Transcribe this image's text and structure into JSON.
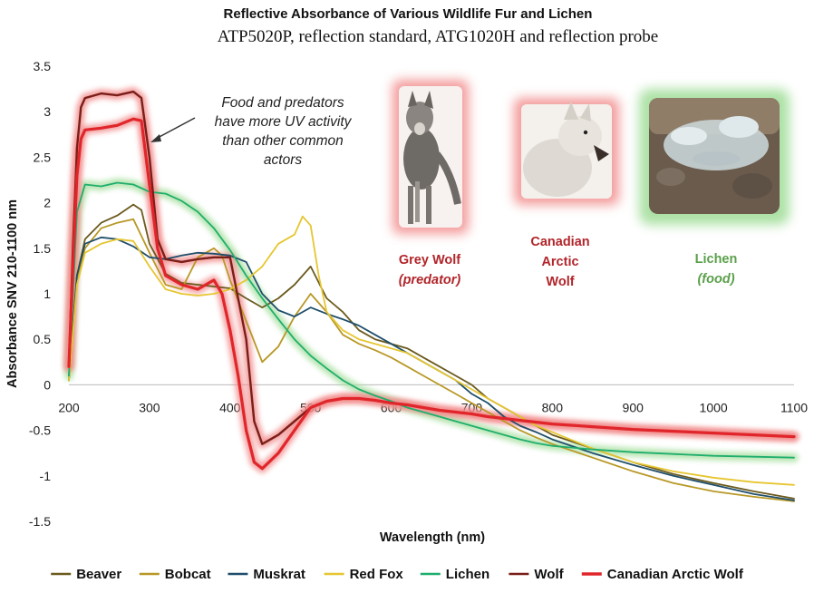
{
  "colors": {
    "Beaver": "#6b5a1e",
    "Bobcat": "#b89826",
    "Muskrat": "#1f4e6b",
    "Red Fox": "#e6c630",
    "Lichen": "#1fae6e",
    "Wolf": "#7a1e18",
    "Canadian Arctic Wolf": "#e0262b",
    "highlight_red": "#f28a8a",
    "highlight_green": "#a8e0a0"
  },
  "chart_data": {
    "type": "line",
    "title": "Reflective Absorbance of Various Wildlife Fur and Lichen",
    "subtitle": "ATP5020P, reflection standard, ATG1020H and reflection probe",
    "xlabel": "Wavelength (nm)",
    "ylabel": "Absorbance SNV 210-1100 nm",
    "xlim": [
      200,
      1100
    ],
    "ylim": [
      -1.5,
      3.5
    ],
    "xticks": [
      200,
      300,
      400,
      500,
      600,
      700,
      800,
      900,
      1000,
      1100
    ],
    "yticks": [
      3.5,
      3,
      2.5,
      2,
      1.5,
      1,
      0.5,
      0,
      -0.5,
      -1,
      -1.5
    ],
    "xtick_labels": [
      "200",
      "300",
      "400",
      "500",
      "600",
      "700",
      "800",
      "900",
      "1000",
      "1100"
    ],
    "ytick_labels": [
      "3.5",
      "3",
      "2.5",
      "2",
      "1.5",
      "1",
      "0.5",
      "0",
      "-0.5",
      "-1",
      "-1.5"
    ],
    "legend_position": "bottom",
    "series": [
      {
        "name": "Beaver",
        "x": [
          200,
          210,
          220,
          240,
          260,
          280,
          290,
          300,
          320,
          340,
          360,
          380,
          400,
          420,
          440,
          460,
          480,
          500,
          520,
          540,
          560,
          580,
          600,
          620,
          640,
          660,
          680,
          700,
          720,
          740,
          760,
          780,
          800,
          850,
          900,
          950,
          1000,
          1050,
          1100
        ],
        "y": [
          0.1,
          1.2,
          1.6,
          1.78,
          1.86,
          1.98,
          1.92,
          1.55,
          1.22,
          1.12,
          1.1,
          1.08,
          1.06,
          0.95,
          0.85,
          0.95,
          1.1,
          1.3,
          0.95,
          0.8,
          0.6,
          0.5,
          0.45,
          0.4,
          0.3,
          0.2,
          0.1,
          0.0,
          -0.15,
          -0.25,
          -0.35,
          -0.45,
          -0.55,
          -0.7,
          -0.85,
          -0.98,
          -1.08,
          -1.17,
          -1.25
        ]
      },
      {
        "name": "Bobcat",
        "x": [
          200,
          210,
          220,
          240,
          260,
          280,
          300,
          320,
          340,
          360,
          380,
          390,
          400,
          420,
          440,
          460,
          480,
          500,
          520,
          540,
          560,
          580,
          600,
          620,
          640,
          660,
          680,
          700,
          720,
          740,
          760,
          780,
          800,
          850,
          900,
          950,
          1000,
          1050,
          1100
        ],
        "y": [
          0.05,
          1.15,
          1.5,
          1.72,
          1.78,
          1.82,
          1.45,
          1.1,
          1.05,
          1.4,
          1.5,
          1.42,
          1.15,
          0.7,
          0.25,
          0.42,
          0.75,
          1.0,
          0.8,
          0.55,
          0.45,
          0.38,
          0.3,
          0.2,
          0.1,
          0.0,
          -0.1,
          -0.2,
          -0.3,
          -0.4,
          -0.5,
          -0.58,
          -0.65,
          -0.8,
          -0.95,
          -1.08,
          -1.17,
          -1.23,
          -1.28
        ]
      },
      {
        "name": "Muskrat",
        "x": [
          200,
          210,
          220,
          240,
          260,
          280,
          300,
          320,
          340,
          360,
          380,
          400,
          420,
          440,
          460,
          480,
          500,
          520,
          540,
          560,
          580,
          600,
          620,
          640,
          660,
          680,
          700,
          720,
          740,
          760,
          780,
          800,
          850,
          900,
          950,
          1000,
          1050,
          1100
        ],
        "y": [
          0.05,
          1.2,
          1.55,
          1.62,
          1.6,
          1.52,
          1.4,
          1.38,
          1.42,
          1.45,
          1.44,
          1.42,
          1.35,
          1.0,
          0.82,
          0.75,
          0.85,
          0.78,
          0.72,
          0.65,
          0.55,
          0.45,
          0.35,
          0.25,
          0.15,
          0.05,
          -0.1,
          -0.2,
          -0.35,
          -0.45,
          -0.52,
          -0.6,
          -0.75,
          -0.88,
          -1.0,
          -1.1,
          -1.2,
          -1.27
        ]
      },
      {
        "name": "Red Fox",
        "x": [
          200,
          210,
          220,
          240,
          260,
          280,
          300,
          320,
          340,
          360,
          380,
          400,
          420,
          440,
          460,
          480,
          490,
          500,
          510,
          520,
          540,
          560,
          580,
          600,
          620,
          640,
          660,
          680,
          700,
          720,
          740,
          760,
          780,
          800,
          850,
          900,
          950,
          1000,
          1050,
          1100
        ],
        "y": [
          0.05,
          1.1,
          1.45,
          1.55,
          1.6,
          1.58,
          1.3,
          1.05,
          1.0,
          0.98,
          1.0,
          1.05,
          1.15,
          1.3,
          1.55,
          1.65,
          1.85,
          1.75,
          1.2,
          0.8,
          0.6,
          0.5,
          0.45,
          0.4,
          0.35,
          0.25,
          0.15,
          0.05,
          -0.05,
          -0.15,
          -0.25,
          -0.35,
          -0.45,
          -0.52,
          -0.7,
          -0.85,
          -0.95,
          -1.02,
          -1.07,
          -1.1
        ]
      },
      {
        "name": "Lichen",
        "x": [
          200,
          210,
          220,
          240,
          260,
          280,
          300,
          320,
          340,
          360,
          380,
          400,
          420,
          440,
          460,
          480,
          500,
          520,
          540,
          560,
          580,
          600,
          620,
          640,
          660,
          680,
          700,
          720,
          740,
          760,
          780,
          800,
          850,
          900,
          950,
          1000,
          1050,
          1100
        ],
        "y": [
          0.1,
          1.9,
          2.2,
          2.18,
          2.22,
          2.2,
          2.12,
          2.1,
          2.02,
          1.9,
          1.72,
          1.48,
          1.2,
          0.95,
          0.72,
          0.5,
          0.32,
          0.18,
          0.05,
          -0.05,
          -0.12,
          -0.18,
          -0.25,
          -0.3,
          -0.35,
          -0.4,
          -0.45,
          -0.5,
          -0.55,
          -0.6,
          -0.64,
          -0.67,
          -0.71,
          -0.74,
          -0.76,
          -0.78,
          -0.79,
          -0.8
        ]
      },
      {
        "name": "Wolf",
        "x": [
          200,
          205,
          210,
          215,
          220,
          240,
          260,
          280,
          290,
          300,
          310,
          320,
          340,
          360,
          380,
          400,
          420,
          430,
          440,
          460,
          480,
          500,
          520,
          540,
          560,
          580,
          600,
          620,
          640,
          660,
          680,
          700,
          720,
          740,
          760,
          780,
          800,
          850,
          900,
          950,
          1000,
          1050,
          1100
        ],
        "y": [
          0.2,
          1.5,
          2.6,
          3.05,
          3.15,
          3.2,
          3.18,
          3.22,
          3.15,
          2.5,
          1.6,
          1.38,
          1.35,
          1.38,
          1.4,
          1.4,
          0.5,
          -0.4,
          -0.65,
          -0.55,
          -0.4,
          -0.25,
          -0.18,
          -0.15,
          -0.15,
          -0.17,
          -0.2,
          -0.22,
          -0.25,
          -0.28,
          -0.3,
          -0.32,
          -0.35,
          -0.37,
          -0.39,
          -0.41,
          -0.43,
          -0.46,
          -0.49,
          -0.51,
          -0.53,
          -0.55,
          -0.57
        ]
      },
      {
        "name": "Canadian Arctic Wolf",
        "x": [
          200,
          205,
          210,
          215,
          220,
          240,
          260,
          280,
          290,
          300,
          310,
          320,
          340,
          360,
          380,
          390,
          400,
          410,
          420,
          430,
          440,
          460,
          480,
          500,
          520,
          540,
          560,
          580,
          600,
          620,
          640,
          660,
          680,
          700,
          720,
          740,
          760,
          780,
          800,
          850,
          900,
          950,
          1000,
          1050,
          1100
        ],
        "y": [
          0.2,
          1.3,
          2.3,
          2.7,
          2.8,
          2.82,
          2.85,
          2.92,
          2.9,
          2.2,
          1.5,
          1.2,
          1.1,
          1.05,
          1.15,
          1.0,
          0.6,
          0.1,
          -0.5,
          -0.85,
          -0.92,
          -0.75,
          -0.5,
          -0.25,
          -0.18,
          -0.15,
          -0.15,
          -0.17,
          -0.2,
          -0.22,
          -0.25,
          -0.28,
          -0.3,
          -0.32,
          -0.35,
          -0.37,
          -0.39,
          -0.41,
          -0.43,
          -0.46,
          -0.49,
          -0.51,
          -0.53,
          -0.55,
          -0.57
        ]
      }
    ],
    "annotation": [
      "Food and predators",
      "have more UV activity",
      "than other common",
      "actors"
    ],
    "panels": [
      {
        "name": "grey-wolf",
        "line1": "Grey Wolf",
        "line2": "(predator)"
      },
      {
        "name": "arctic-wolf",
        "line1": "Canadian",
        "line2": "Arctic",
        "line3": "Wolf"
      },
      {
        "name": "lichen",
        "line1": "Lichen",
        "line2": "(food)"
      }
    ]
  }
}
